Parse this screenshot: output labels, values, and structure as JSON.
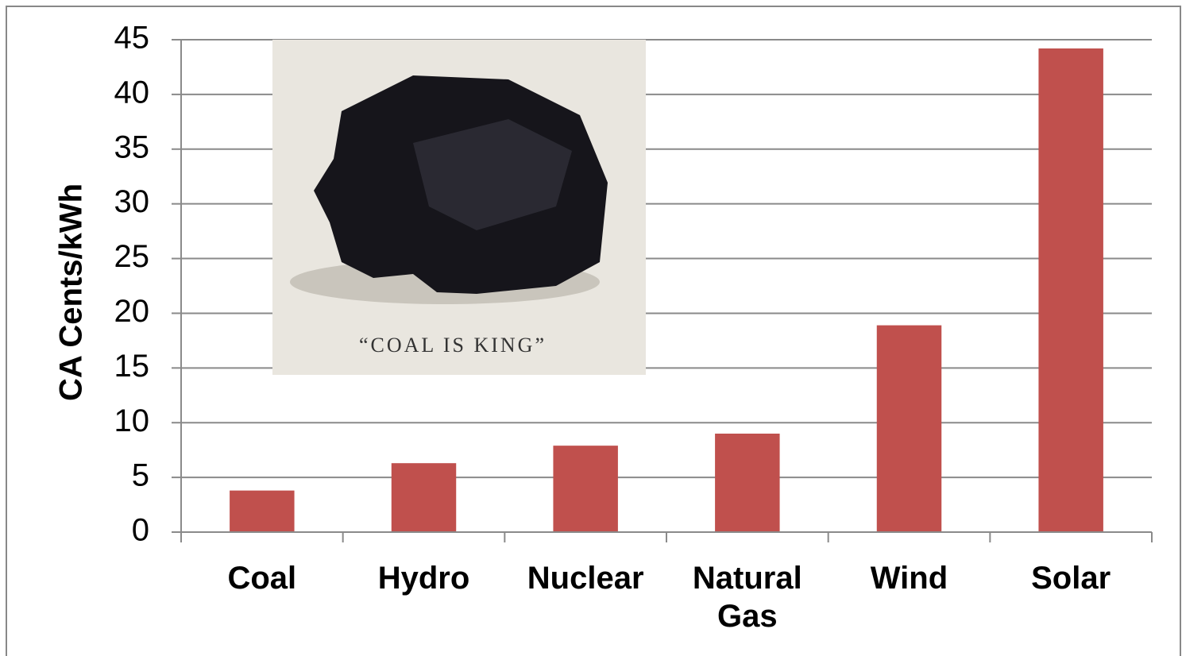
{
  "chart_data": {
    "type": "bar",
    "y_label": "CA Cents/kWh",
    "categories": [
      "Coal",
      "Hydro",
      "Nuclear",
      "Natural Gas",
      "Wind",
      "Solar"
    ],
    "values": [
      3.8,
      6.3,
      7.9,
      9.0,
      18.9,
      44.2
    ],
    "color": "#c0504d",
    "ylim": [
      0,
      45
    ],
    "yticks": [
      0,
      5,
      10,
      15,
      20,
      25,
      30,
      35,
      40,
      45
    ],
    "grid": true,
    "inset_caption": "“COAL IS KING”"
  }
}
